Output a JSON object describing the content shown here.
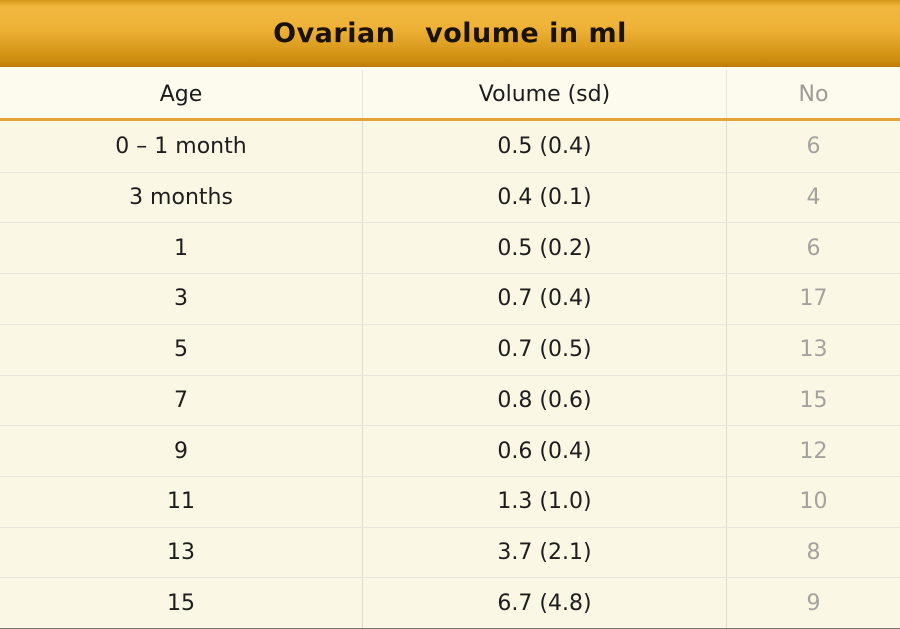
{
  "title": "Ovarian   volume in ml",
  "colors": {
    "banner_gold": "#eeb237",
    "accent_line": "#e2a43a",
    "row_background": "#fbf7e5",
    "muted_text": "#a3a29e"
  },
  "table": {
    "columns": [
      "Age",
      "Volume (sd)",
      "No"
    ],
    "rows": [
      {
        "age": "0 – 1 month",
        "volume": "0.5 (0.4)",
        "no": "6"
      },
      {
        "age": "3 months",
        "volume": "0.4 (0.1)",
        "no": "4"
      },
      {
        "age": "1",
        "volume": "0.5 (0.2)",
        "no": "6"
      },
      {
        "age": "3",
        "volume": "0.7 (0.4)",
        "no": "17"
      },
      {
        "age": "5",
        "volume": "0.7 (0.5)",
        "no": "13"
      },
      {
        "age": "7",
        "volume": "0.8 (0.6)",
        "no": "15"
      },
      {
        "age": "9",
        "volume": "0.6 (0.4)",
        "no": "12"
      },
      {
        "age": "11",
        "volume": "1.3 (1.0)",
        "no": "10"
      },
      {
        "age": "13",
        "volume": "3.7 (2.1)",
        "no": "8"
      },
      {
        "age": "15",
        "volume": "6.7 (4.8)",
        "no": "9"
      }
    ]
  }
}
